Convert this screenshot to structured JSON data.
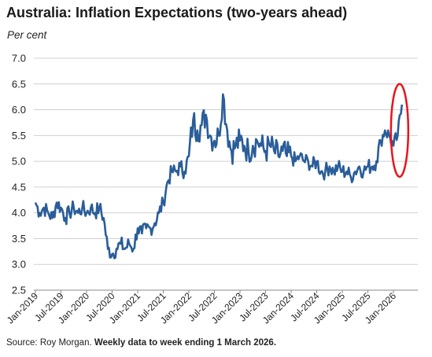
{
  "title": "Australia: Inflation Expectations (two-years ahead)",
  "units": "Per cent",
  "source": {
    "prefix": "Source: Roy Morgan. ",
    "note": "Weekly data to week ending 1 March 2026."
  },
  "colors": {
    "line": "#2a5d99",
    "highlight": "#e8141b",
    "grid": "#d0d0d0"
  },
  "chart_data": {
    "type": "line",
    "title": "Australia: Inflation Expectations (two-years ahead)",
    "ylabel": "Per cent",
    "xlabel": "",
    "ylim": [
      2.5,
      7.0
    ],
    "yticks": [
      "2.5",
      "3.0",
      "3.5",
      "4.0",
      "4.5",
      "5.0",
      "5.5",
      "6.0",
      "6.5",
      "7.0"
    ],
    "xticks": [
      "Jan-2019",
      "Jul-2019",
      "Jan-2020",
      "Jul-2020",
      "Jan-2021",
      "Jul-2021",
      "Jan-2022",
      "Jul-2022",
      "Jan-2023",
      "Jul-2023",
      "Jan-2024",
      "Jul-2024",
      "Jan-2025",
      "Jul-2025",
      "Jan-2026"
    ],
    "grid": "horizontal",
    "frequency": "weekly",
    "annotation": "red ellipse around latest reading (early 2026)",
    "series": [
      {
        "x": [
          "2019-01",
          "2019-02",
          "2019-03",
          "2019-04",
          "2019-05",
          "2019-06",
          "2019-07",
          "2019-08",
          "2019-09",
          "2019-10",
          "2019-11",
          "2019-12",
          "2020-01",
          "2020-02",
          "2020-03",
          "2020-04",
          "2020-05",
          "2020-06",
          "2020-07",
          "2020-08",
          "2020-09",
          "2020-10",
          "2020-11",
          "2020-12",
          "2021-01",
          "2021-02",
          "2021-03",
          "2021-04",
          "2021-05",
          "2021-06",
          "2021-07",
          "2021-08",
          "2021-09",
          "2021-10",
          "2021-11",
          "2021-12",
          "2022-01",
          "2022-02",
          "2022-03",
          "2022-04",
          "2022-05",
          "2022-06",
          "2022-07",
          "2022-08",
          "2022-09",
          "2022-10",
          "2022-11",
          "2022-12",
          "2023-01",
          "2023-02",
          "2023-03",
          "2023-04",
          "2023-05",
          "2023-06",
          "2023-07",
          "2023-08",
          "2023-09",
          "2023-10",
          "2023-11",
          "2023-12",
          "2024-01",
          "2024-02",
          "2024-03",
          "2024-04",
          "2024-05",
          "2024-06",
          "2024-07",
          "2024-08",
          "2024-09",
          "2024-10",
          "2024-11",
          "2024-12",
          "2025-01",
          "2025-02",
          "2025-03",
          "2025-04",
          "2025-05",
          "2025-06",
          "2025-07",
          "2025-08",
          "2025-09",
          "2025-10",
          "2025-11",
          "2025-12",
          "2026-01",
          "2026-02",
          "2026-03"
        ],
        "values": [
          4.2,
          4.0,
          4.1,
          4.0,
          3.9,
          4.2,
          4.1,
          3.9,
          4.0,
          4.1,
          4.0,
          4.1,
          4.0,
          4.1,
          4.0,
          4.1,
          3.9,
          3.3,
          3.2,
          3.3,
          3.4,
          3.3,
          3.4,
          3.3,
          3.7,
          3.6,
          3.7,
          3.7,
          3.8,
          4.0,
          4.2,
          4.6,
          4.8,
          4.8,
          4.9,
          4.8,
          5.1,
          5.8,
          5.6,
          5.7,
          5.9,
          5.5,
          5.4,
          5.5,
          6.3,
          5.6,
          5.2,
          5.3,
          5.4,
          5.3,
          5.2,
          5.3,
          5.4,
          5.3,
          5.2,
          5.3,
          5.2,
          5.1,
          5.2,
          5.1,
          5.1,
          5.0,
          5.1,
          5.0,
          5.0,
          4.9,
          5.0,
          4.8,
          4.8,
          4.9,
          4.8,
          4.9,
          4.8,
          4.8,
          4.7,
          4.8,
          4.9,
          4.8,
          4.9,
          4.9,
          5.0,
          5.4,
          5.6,
          5.5,
          5.3,
          5.5,
          6.1
        ]
      }
    ]
  }
}
